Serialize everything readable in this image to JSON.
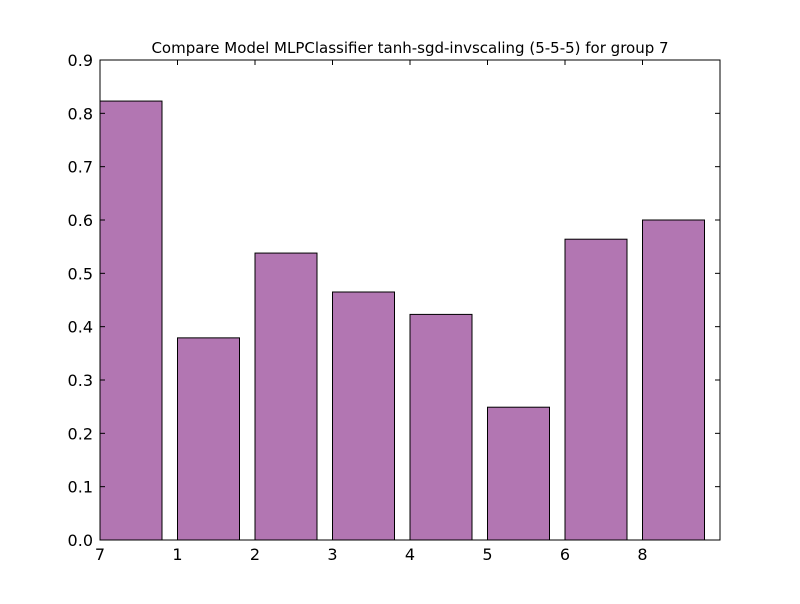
{
  "chart_data": {
    "type": "bar",
    "title": "Compare Model MLPClassifier tanh-sgd-invscaling (5-5-5) for group 7",
    "xlabel": "",
    "ylabel": "",
    "categories": [
      "7",
      "1",
      "2",
      "3",
      "4",
      "5",
      "6",
      "8"
    ],
    "values": [
      0.823,
      0.379,
      0.538,
      0.465,
      0.423,
      0.249,
      0.564,
      0.6
    ],
    "ylim": [
      0,
      0.9
    ],
    "yticks": [
      "0.0",
      "0.1",
      "0.2",
      "0.3",
      "0.4",
      "0.5",
      "0.6",
      "0.7",
      "0.8",
      "0.9"
    ],
    "grid": false,
    "legend": "none",
    "bar_color": "#b276b2",
    "edge_color": "#000000"
  }
}
